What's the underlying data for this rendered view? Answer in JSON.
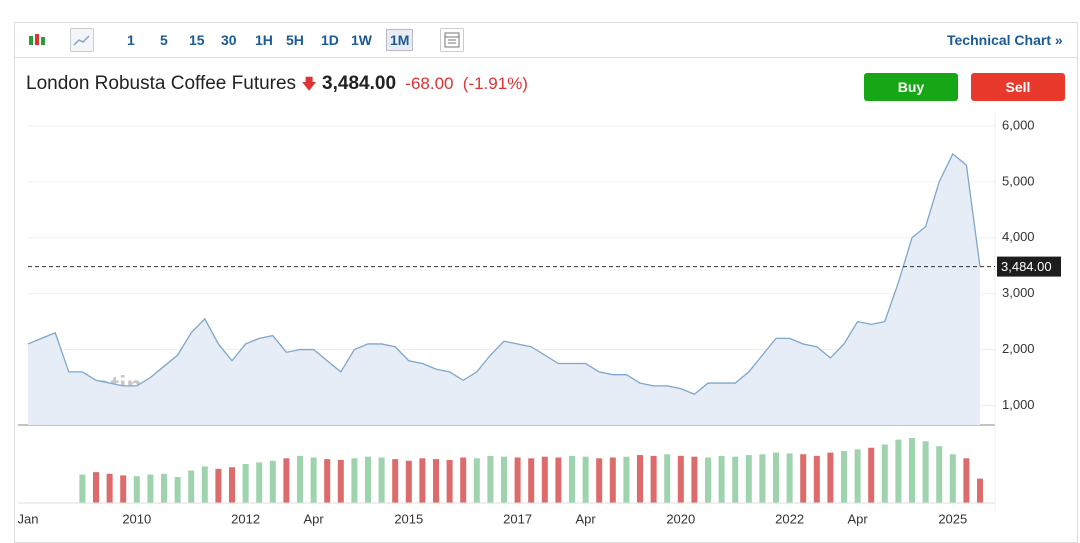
{
  "toolbar": {
    "intervals": [
      "1",
      "5",
      "15",
      "30",
      "1H",
      "5H",
      "1D",
      "1W",
      "1M"
    ],
    "active": "1M",
    "technical_link": "Technical Chart »"
  },
  "header": {
    "title": "London Robusta Coffee Futures",
    "price": "3,484.00",
    "change": "-68.00",
    "change_pct": "(-1.91%)",
    "buy": "Buy",
    "sell": "Sell"
  },
  "watermark": "Investing.com",
  "chart_data": {
    "type": "line",
    "categories": [
      "Jan",
      null,
      null,
      null,
      null,
      null,
      null,
      null,
      "2010",
      null,
      null,
      null,
      null,
      null,
      null,
      null,
      "2012",
      null,
      null,
      null,
      null,
      "Apr",
      null,
      null,
      null,
      null,
      null,
      null,
      "2015",
      null,
      null,
      null,
      null,
      null,
      null,
      null,
      "2017",
      null,
      null,
      null,
      null,
      "Apr",
      null,
      null,
      null,
      null,
      null,
      null,
      "2020",
      null,
      null,
      null,
      null,
      null,
      null,
      null,
      "2022",
      null,
      null,
      null,
      null,
      "Apr",
      null,
      null,
      null,
      null,
      null,
      null,
      "2025",
      null,
      null
    ],
    "series": [
      {
        "color": "#7ea6cc",
        "fill": "#e6edf6",
        "values": [
          2100,
          2200,
          2300,
          1600,
          1600,
          1450,
          1400,
          1350,
          1350,
          1500,
          1700,
          1900,
          2300,
          2550,
          2100,
          1800,
          2100,
          2200,
          2250,
          1950,
          2000,
          2000,
          1800,
          1600,
          2000,
          2100,
          2100,
          2050,
          1800,
          1750,
          1650,
          1600,
          1450,
          1600,
          1900,
          2150,
          2100,
          2050,
          1900,
          1750,
          1750,
          1750,
          1600,
          1550,
          1550,
          1400,
          1350,
          1350,
          1300,
          1200,
          1400,
          1400,
          1400,
          1600,
          1900,
          2200,
          2200,
          2100,
          2050,
          1850,
          2100,
          2500,
          2450,
          2500,
          3200,
          4000,
          4200,
          5000,
          5500,
          5300,
          3484
        ],
        "last_label": {
          "value": 3484,
          "label": "3,484.00"
        }
      }
    ],
    "ylim": [
      650,
      6250
    ],
    "yticks": [
      {
        "value": 1000,
        "label": "1,000"
      },
      {
        "value": 2000,
        "label": "2,000"
      },
      {
        "value": 3000,
        "label": "3,000"
      },
      {
        "value": 4000,
        "label": "4,000"
      },
      {
        "value": 5000,
        "label": "5,000"
      },
      {
        "value": 6000,
        "label": "6,000"
      }
    ],
    "grid": true,
    "volume": {
      "up_color": "#9fd3ae",
      "down_color": "#dd6b6b",
      "values": [
        null,
        null,
        null,
        null,
        35,
        38,
        36,
        34,
        33,
        35,
        36,
        32,
        40,
        45,
        42,
        44,
        48,
        50,
        52,
        55,
        58,
        56,
        54,
        53,
        55,
        57,
        56,
        54,
        52,
        55,
        54,
        53,
        56,
        55,
        58,
        57,
        56,
        55,
        57,
        56,
        58,
        57,
        55,
        56,
        57,
        59,
        58,
        60,
        58,
        57,
        56,
        58,
        57,
        59,
        60,
        62,
        61,
        60,
        58,
        62,
        64,
        66,
        68,
        72,
        78,
        80,
        76,
        70,
        60,
        55,
        30
      ]
    }
  }
}
